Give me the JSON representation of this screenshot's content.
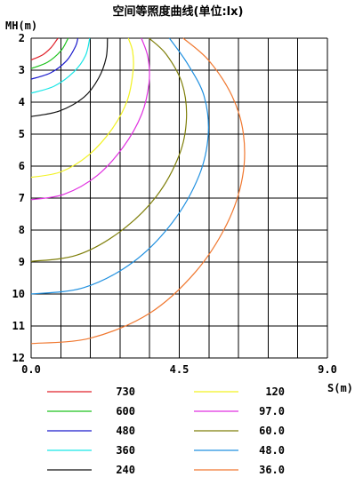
{
  "chart_data": {
    "type": "line",
    "title": "空间等照度曲线(单位:lx)",
    "ylabel": "MH(m)",
    "xlabel": "S(m)",
    "xlim": [
      0,
      9
    ],
    "ylim": [
      2,
      12
    ],
    "x_ticks": [
      "0.0",
      "4.5",
      "9.0"
    ],
    "y_ticks": [
      "2",
      "3",
      "4",
      "5",
      "6",
      "7",
      "8",
      "9",
      "10",
      "11",
      "12"
    ],
    "grid": true,
    "legend_position": "bottom",
    "series": [
      {
        "name": "730",
        "color": "#e0202a",
        "points": [
          [
            0,
            2.68
          ],
          [
            0.35,
            2.52
          ],
          [
            0.6,
            2.3
          ],
          [
            0.78,
            2.05
          ],
          [
            0.82,
            2.0
          ]
        ]
      },
      {
        "name": "600",
        "color": "#1fc21f",
        "points": [
          [
            0,
            2.95
          ],
          [
            0.5,
            2.75
          ],
          [
            0.9,
            2.4
          ],
          [
            1.1,
            2.05
          ],
          [
            1.12,
            2.0
          ]
        ]
      },
      {
        "name": "480",
        "color": "#1a1acc",
        "points": [
          [
            0,
            3.28
          ],
          [
            0.6,
            3.08
          ],
          [
            1.08,
            2.7
          ],
          [
            1.35,
            2.25
          ],
          [
            1.42,
            2.0
          ]
        ]
      },
      {
        "name": "360",
        "color": "#18e6e6",
        "points": [
          [
            0,
            3.72
          ],
          [
            0.7,
            3.5
          ],
          [
            1.3,
            3.05
          ],
          [
            1.65,
            2.55
          ],
          [
            1.78,
            2.0
          ]
        ]
      },
      {
        "name": "240",
        "color": "#111111",
        "points": [
          [
            0,
            4.45
          ],
          [
            0.85,
            4.28
          ],
          [
            1.6,
            3.85
          ],
          [
            2.05,
            3.25
          ],
          [
            2.28,
            2.6
          ],
          [
            2.32,
            2.0
          ]
        ]
      },
      {
        "name": "120",
        "color": "#f2f222",
        "points": [
          [
            0,
            6.35
          ],
          [
            0.9,
            6.18
          ],
          [
            1.75,
            5.65
          ],
          [
            2.45,
            4.85
          ],
          [
            2.92,
            3.95
          ],
          [
            3.1,
            3.0
          ],
          [
            3.08,
            2.4
          ],
          [
            2.95,
            2.0
          ]
        ]
      },
      {
        "name": "97.0",
        "color": "#e030e0",
        "points": [
          [
            0,
            7.05
          ],
          [
            1.0,
            6.88
          ],
          [
            2.0,
            6.3
          ],
          [
            2.8,
            5.4
          ],
          [
            3.35,
            4.4
          ],
          [
            3.58,
            3.4
          ],
          [
            3.55,
            2.6
          ],
          [
            3.35,
            2.0
          ]
        ]
      },
      {
        "name": "60.0",
        "color": "#7f7f0a",
        "points": [
          [
            0,
            8.98
          ],
          [
            1.4,
            8.78
          ],
          [
            2.7,
            8.05
          ],
          [
            3.8,
            6.95
          ],
          [
            4.5,
            5.65
          ],
          [
            4.72,
            4.5
          ],
          [
            4.58,
            3.4
          ],
          [
            4.1,
            2.5
          ],
          [
            3.58,
            2.0
          ]
        ]
      },
      {
        "name": "48.0",
        "color": "#2090e0",
        "points": [
          [
            0,
            10.0
          ],
          [
            1.6,
            9.8
          ],
          [
            3.1,
            9.0
          ],
          [
            4.3,
            7.75
          ],
          [
            5.1,
            6.3
          ],
          [
            5.38,
            5.0
          ],
          [
            5.25,
            3.8
          ],
          [
            4.75,
            2.8
          ],
          [
            4.2,
            2.0
          ]
        ]
      },
      {
        "name": "36.0",
        "color": "#f07830",
        "points": [
          [
            0,
            11.55
          ],
          [
            1.8,
            11.38
          ],
          [
            3.6,
            10.6
          ],
          [
            5.0,
            9.3
          ],
          [
            5.95,
            7.8
          ],
          [
            6.42,
            6.35
          ],
          [
            6.45,
            5.0
          ],
          [
            6.1,
            3.8
          ],
          [
            5.4,
            2.7
          ],
          [
            4.62,
            2.0
          ]
        ]
      }
    ]
  }
}
